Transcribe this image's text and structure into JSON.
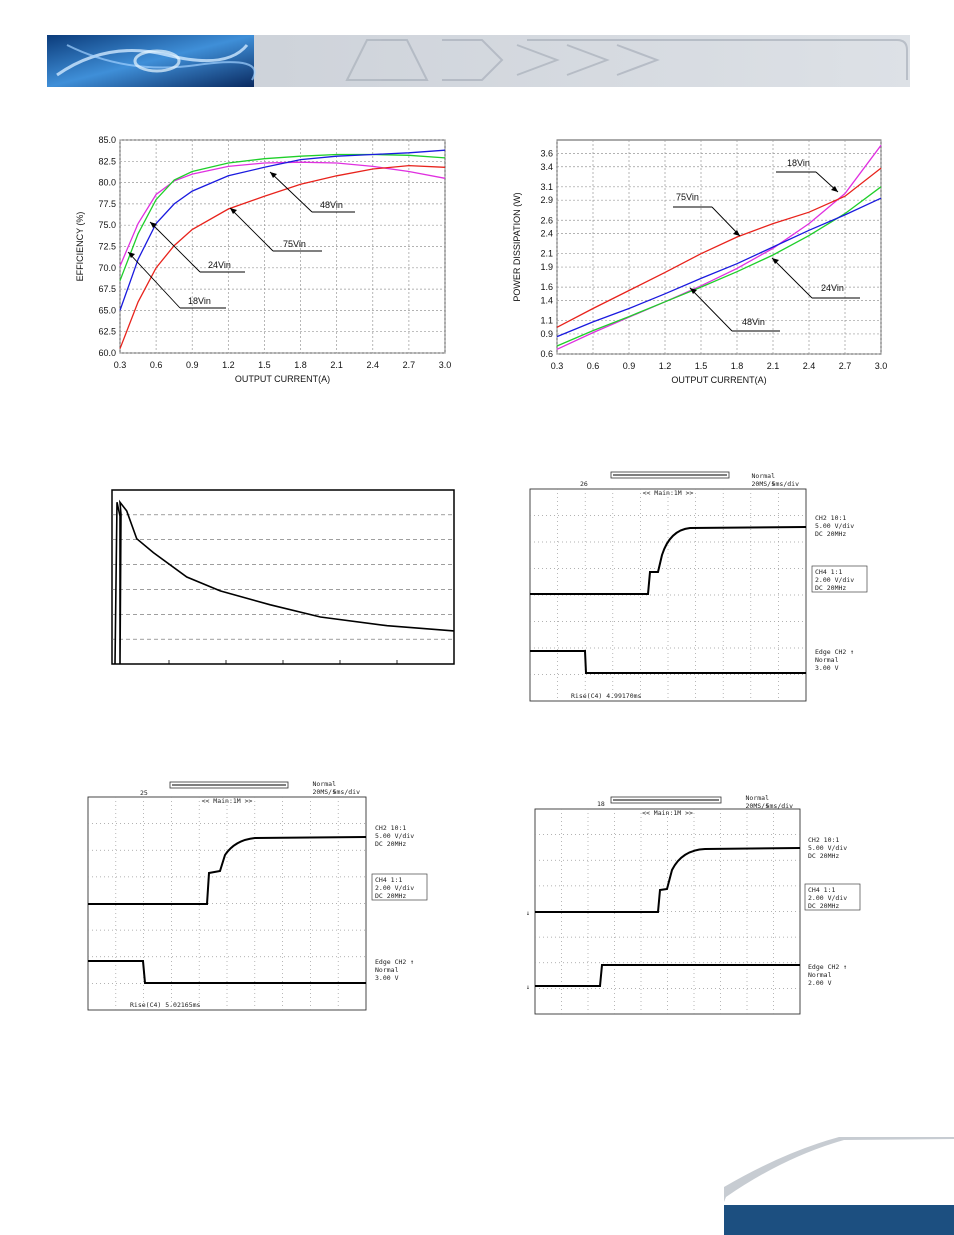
{
  "colors": {
    "red": "#e8231c",
    "green": "#1fcf2a",
    "blue": "#1a1adf",
    "magenta": "#e030e0",
    "footer_band": "#1c4f80"
  },
  "chart_data": [
    {
      "type": "line",
      "title": "",
      "xlabel": "OUTPUT CURRENT(A)",
      "ylabel": "EFFICIENCY (%)",
      "xlim": [
        0.3,
        3.0
      ],
      "ylim": [
        60.0,
        85.0
      ],
      "x_ticks": [
        "0.3",
        "0.6",
        "0.9",
        "1.2",
        "1.5",
        "1.8",
        "2.1",
        "2.4",
        "2.7",
        "3.0"
      ],
      "y_ticks": [
        "60.0",
        "62.5",
        "65.0",
        "67.5",
        "70.0",
        "72.5",
        "75.0",
        "77.5",
        "80.0",
        "82.5",
        "85.0"
      ],
      "grid": true,
      "series": [
        {
          "name": "18Vin",
          "color": "#e030e0",
          "x": [
            0.3,
            0.45,
            0.6,
            0.75,
            0.9,
            1.2,
            1.5,
            1.8,
            2.1,
            2.4,
            2.7,
            3.0
          ],
          "y": [
            70.2,
            75.2,
            78.6,
            80.2,
            81.0,
            81.9,
            82.3,
            82.4,
            82.3,
            81.9,
            81.3,
            80.5
          ]
        },
        {
          "name": "24Vin",
          "color": "#1fcf2a",
          "x": [
            0.3,
            0.45,
            0.6,
            0.75,
            0.9,
            1.2,
            1.5,
            1.8,
            2.1,
            2.4,
            2.7,
            3.0
          ],
          "y": [
            68.5,
            74.0,
            78.0,
            80.3,
            81.3,
            82.3,
            82.8,
            83.1,
            83.3,
            83.3,
            83.2,
            82.9
          ]
        },
        {
          "name": "48Vin",
          "color": "#1a1adf",
          "x": [
            0.3,
            0.45,
            0.6,
            0.75,
            0.9,
            1.2,
            1.5,
            1.8,
            2.1,
            2.4,
            2.7,
            3.0
          ],
          "y": [
            65.0,
            71.0,
            75.2,
            77.5,
            79.0,
            80.8,
            81.8,
            82.7,
            83.1,
            83.3,
            83.5,
            83.8
          ]
        },
        {
          "name": "75Vin",
          "color": "#e8231c",
          "x": [
            0.3,
            0.45,
            0.6,
            0.75,
            0.9,
            1.2,
            1.5,
            1.8,
            2.1,
            2.4,
            2.7,
            3.0
          ],
          "y": [
            60.5,
            66.0,
            70.0,
            72.6,
            74.5,
            76.9,
            78.4,
            79.8,
            80.8,
            81.6,
            82.0,
            81.8
          ]
        }
      ],
      "annotations": [
        "48Vin",
        "75Vin",
        "24Vin",
        "18Vin"
      ]
    },
    {
      "type": "line",
      "title": "",
      "xlabel": "OUTPUT CURRENT(A)",
      "ylabel": "POWER DISSIPATION (W)",
      "xlim": [
        0.3,
        3.0
      ],
      "ylim": [
        0.6,
        3.8
      ],
      "x_ticks": [
        "0.3",
        "0.6",
        "0.9",
        "1.2",
        "1.5",
        "1.8",
        "2.1",
        "2.4",
        "2.7",
        "3.0"
      ],
      "y_ticks": [
        "0.6",
        "0.9",
        "1.1",
        "1.4",
        "1.6",
        "1.9",
        "2.1",
        "2.4",
        "2.6",
        "2.9",
        "3.1",
        "3.4",
        "3.6"
      ],
      "grid": true,
      "series": [
        {
          "name": "18Vin",
          "color": "#e030e0",
          "x": [
            0.3,
            0.6,
            0.9,
            1.2,
            1.5,
            1.8,
            2.1,
            2.4,
            2.7,
            3.0
          ],
          "y": [
            0.67,
            0.92,
            1.15,
            1.38,
            1.62,
            1.88,
            2.18,
            2.55,
            3.0,
            3.72
          ]
        },
        {
          "name": "24Vin",
          "color": "#1fcf2a",
          "x": [
            0.3,
            0.6,
            0.9,
            1.2,
            1.5,
            1.8,
            2.1,
            2.4,
            2.7,
            3.0
          ],
          "y": [
            0.72,
            0.95,
            1.16,
            1.38,
            1.6,
            1.83,
            2.08,
            2.37,
            2.7,
            3.1
          ]
        },
        {
          "name": "48Vin",
          "color": "#1a1adf",
          "x": [
            0.3,
            0.6,
            0.9,
            1.2,
            1.5,
            1.8,
            2.1,
            2.4,
            2.7,
            3.0
          ],
          "y": [
            0.86,
            1.08,
            1.28,
            1.5,
            1.73,
            1.95,
            2.2,
            2.45,
            2.68,
            2.93
          ]
        },
        {
          "name": "75Vin",
          "color": "#e8231c",
          "x": [
            0.3,
            0.6,
            0.9,
            1.2,
            1.5,
            1.8,
            2.1,
            2.4,
            2.7,
            3.0
          ],
          "y": [
            1.0,
            1.28,
            1.55,
            1.82,
            2.1,
            2.35,
            2.55,
            2.72,
            2.96,
            3.38
          ]
        }
      ],
      "annotations": [
        "18Vin",
        "75Vin",
        "24Vin",
        "48Vin"
      ]
    },
    {
      "type": "line",
      "title": "",
      "grid": true,
      "series": [
        {
          "name": "",
          "color": "#000000",
          "x": [
            0,
            0.02,
            0.05,
            0.1,
            0.2,
            0.3,
            0.45,
            0.6,
            0.8,
            1.0
          ],
          "y": [
            0.93,
            0.88,
            0.72,
            0.64,
            0.5,
            0.42,
            0.34,
            0.27,
            0.22,
            0.19
          ]
        }
      ]
    }
  ],
  "scopes": [
    {
      "marker": "26",
      "header_mode": "Normal",
      "header_rate": "20MS/s",
      "header_div": "5ms/div",
      "main_label": "<< Main:1M >>",
      "ch2_lines": [
        "CH2 10:1",
        "5.00 V/div",
        "DC   20MHz"
      ],
      "ch4_lines": [
        "CH4 1:1",
        "2.00 V/div",
        "DC   20MHz"
      ],
      "edge_lines": [
        "Edge CH2 ↑",
        "Normal",
        "3.00 V"
      ],
      "measurement": "Rise(C4)  4.99170ms"
    },
    {
      "marker": "25",
      "header_mode": "Normal",
      "header_rate": "20MS/s",
      "header_div": "5ms/div",
      "main_label": "<< Main:1M >>",
      "ch2_lines": [
        "CH2 10:1",
        "5.00 V/div",
        "DC   20MHz"
      ],
      "ch4_lines": [
        "CH4 1:1",
        "2.00 V/div",
        "DC   20MHz"
      ],
      "edge_lines": [
        "Edge CH2 ↑",
        "Normal",
        "3.00 V"
      ],
      "measurement": "Rise(C4)  5.02165ms"
    },
    {
      "marker": "18",
      "header_mode": "Normal",
      "header_rate": "20MS/s",
      "header_div": "5ms/div",
      "main_label": "<< Main:1M >>",
      "ch2_lines": [
        "CH2 10:1",
        "5.00 V/div",
        "DC   20MHz"
      ],
      "ch4_lines": [
        "CH4 1:1",
        "2.00 V/div",
        "DC   20MHz"
      ],
      "edge_lines": [
        "Edge CH2 ↑",
        "Normal",
        "2.00 V"
      ],
      "measurement": ""
    }
  ]
}
